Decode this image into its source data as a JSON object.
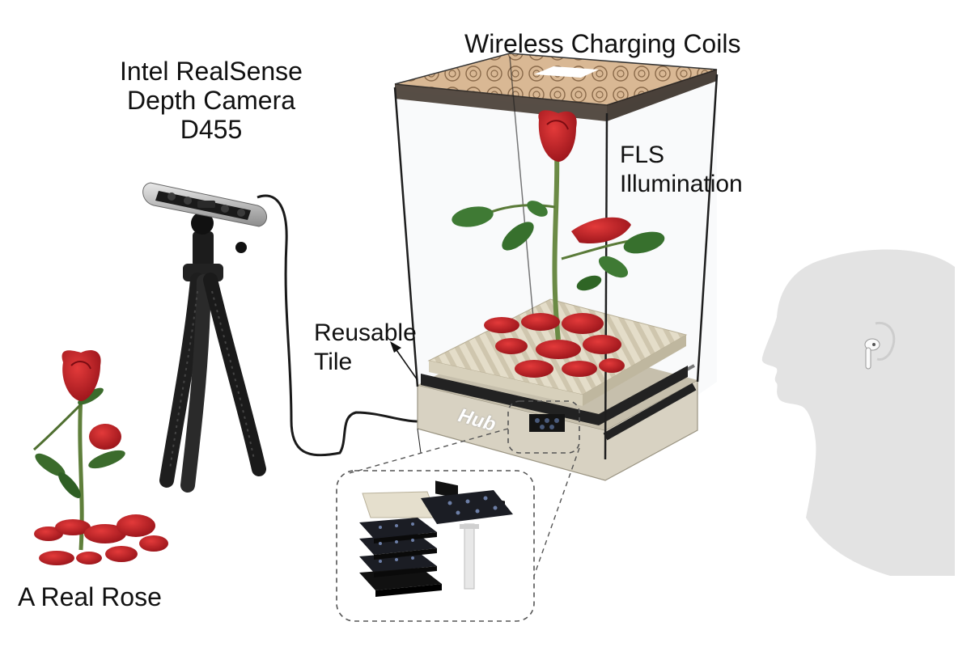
{
  "labels": {
    "coils": "Wireless Charging Coils",
    "camera": [
      "Intel RealSense",
      "Depth Camera",
      "D455"
    ],
    "fls": [
      "FLS",
      "Illumination"
    ],
    "tile": [
      "Reusable",
      "Tile"
    ],
    "hub": "Hub",
    "rose": "A Real Rose"
  },
  "colors": {
    "rose_red": "#b8141c",
    "leaf_green": "#2f6b2a",
    "stem_green": "#5f7f3b",
    "enclosure_edge": "#1e1e1e",
    "coil_tan": "#c9a27a",
    "tile_black": "#1a1a1a",
    "base_beige": "#d8d2c2",
    "head_gray": "#e3e3e3"
  }
}
